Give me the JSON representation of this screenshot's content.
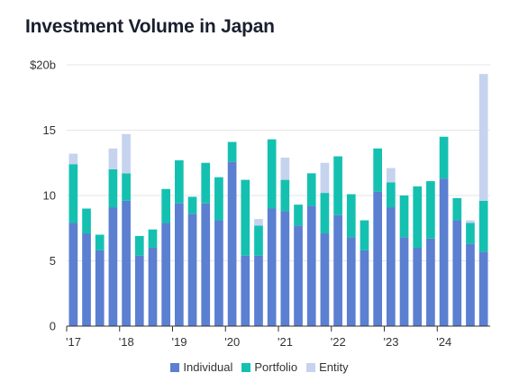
{
  "chart_data": {
    "type": "bar",
    "stacked": true,
    "title": "Investment Volume in Japan",
    "xlabel": "",
    "ylabel": "",
    "ylim": [
      0,
      20
    ],
    "y_ticks": [
      {
        "value": 0,
        "label": "0"
      },
      {
        "value": 5,
        "label": "5"
      },
      {
        "value": 10,
        "label": "10"
      },
      {
        "value": 15,
        "label": "15"
      },
      {
        "value": 20,
        "label": "$20b"
      }
    ],
    "x_tick_labels": [
      {
        "index": 0,
        "label": "'17"
      },
      {
        "index": 4,
        "label": "'18"
      },
      {
        "index": 8,
        "label": "'19"
      },
      {
        "index": 12,
        "label": "'20"
      },
      {
        "index": 16,
        "label": "'21"
      },
      {
        "index": 20,
        "label": "'22"
      },
      {
        "index": 24,
        "label": "'23"
      },
      {
        "index": 28,
        "label": "'24"
      }
    ],
    "categories": [
      "Q1 2017",
      "Q2 2017",
      "Q3 2017",
      "Q4 2017",
      "Q1 2018",
      "Q2 2018",
      "Q3 2018",
      "Q4 2018",
      "Q1 2019",
      "Q2 2019",
      "Q3 2019",
      "Q4 2019",
      "Q1 2020",
      "Q2 2020",
      "Q3 2020",
      "Q4 2020",
      "Q1 2021",
      "Q2 2021",
      "Q3 2021",
      "Q4 2021",
      "Q1 2022",
      "Q2 2022",
      "Q3 2022",
      "Q4 2022",
      "Q1 2023",
      "Q2 2023",
      "Q3 2023",
      "Q4 2023",
      "Q1 2024",
      "Q2 2024",
      "Q3 2024",
      "Q4 2024"
    ],
    "series": [
      {
        "name": "Individual",
        "color": "#5b7fd1",
        "values": [
          7.9,
          7.1,
          5.8,
          9.1,
          9.6,
          5.4,
          6.0,
          7.9,
          9.4,
          8.6,
          9.4,
          8.1,
          12.6,
          5.4,
          5.4,
          9.0,
          8.8,
          7.7,
          9.2,
          7.1,
          8.5,
          6.8,
          5.8,
          10.3,
          9.1,
          6.8,
          6.0,
          6.7,
          11.3,
          8.1,
          6.3,
          5.7
        ]
      },
      {
        "name": "Portfolio",
        "color": "#14c1b0",
        "values": [
          4.5,
          1.9,
          1.2,
          2.9,
          2.1,
          1.5,
          1.4,
          2.6,
          3.3,
          1.3,
          3.1,
          3.3,
          1.5,
          5.8,
          2.3,
          5.3,
          2.4,
          1.6,
          2.5,
          3.1,
          4.5,
          3.3,
          2.3,
          3.3,
          1.9,
          3.2,
          4.7,
          4.4,
          3.2,
          1.7,
          1.6,
          3.9
        ]
      },
      {
        "name": "Entity",
        "color": "#c6d3ee",
        "values": [
          0.8,
          0,
          0,
          1.6,
          3.0,
          0,
          0,
          0,
          0,
          0,
          0,
          0,
          0,
          0,
          0.5,
          0,
          1.7,
          0,
          0,
          2.3,
          0,
          0,
          0,
          0,
          1.1,
          0,
          0,
          0,
          0,
          0,
          0.2,
          9.7
        ]
      }
    ],
    "legend_position": "bottom-center",
    "grid": true
  }
}
